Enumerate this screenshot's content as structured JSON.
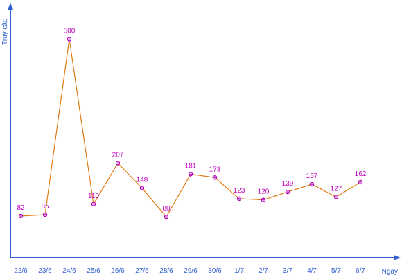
{
  "chart_data": {
    "type": "line",
    "title": "",
    "xlabel": "Ngày",
    "ylabel": "Truy cập",
    "categories": [
      "22/6",
      "23/6",
      "24/6",
      "25/6",
      "26/6",
      "27/6",
      "28/6",
      "29/6",
      "30/6",
      "1/7",
      "2/7",
      "3/7",
      "4/7",
      "5/7",
      "6/7"
    ],
    "values": [
      82,
      85,
      500,
      110,
      207,
      148,
      80,
      181,
      173,
      123,
      120,
      139,
      157,
      127,
      162
    ],
    "ylim": [
      0,
      540
    ],
    "grid": false,
    "legend": "none",
    "colors": {
      "axis": "#2f5fd0",
      "line": "#e07a10",
      "marker": "#b000b0",
      "label": "#c000c0"
    }
  }
}
